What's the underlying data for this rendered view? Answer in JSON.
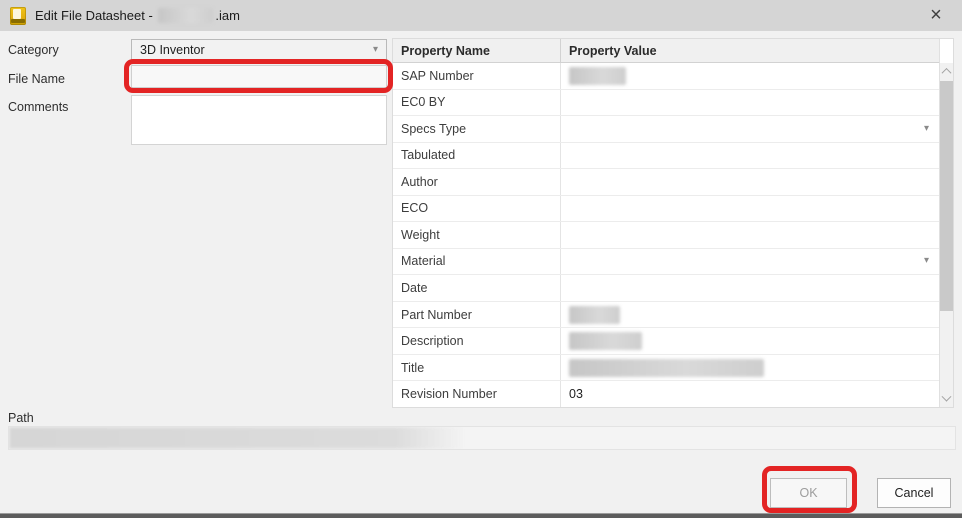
{
  "window": {
    "title_prefix": "Edit File Datasheet - ",
    "title_suffix": ".iam",
    "title_redacted": true,
    "close_glyph": "×"
  },
  "left_panel": {
    "category_label": "Category",
    "category_value": "3D Inventor",
    "file_name_label": "File Name",
    "file_name_value": "",
    "comments_label": "Comments",
    "comments_value": ""
  },
  "table": {
    "headers": [
      "Property Name",
      "Property Value"
    ],
    "rows": [
      {
        "name": "SAP Number",
        "value": "",
        "redacted": true,
        "redact_width": 57,
        "dropdown": false
      },
      {
        "name": "EC0 BY",
        "value": "",
        "redacted": false,
        "dropdown": false
      },
      {
        "name": "Specs Type",
        "value": "",
        "redacted": false,
        "dropdown": true
      },
      {
        "name": "Tabulated",
        "value": "",
        "redacted": false,
        "dropdown": false
      },
      {
        "name": "Author",
        "value": "",
        "redacted": false,
        "dropdown": false
      },
      {
        "name": "ECO",
        "value": "",
        "redacted": false,
        "dropdown": false
      },
      {
        "name": "Weight",
        "value": "",
        "redacted": false,
        "dropdown": false
      },
      {
        "name": "Material",
        "value": "",
        "redacted": false,
        "dropdown": true
      },
      {
        "name": "Date",
        "value": "",
        "redacted": false,
        "dropdown": false
      },
      {
        "name": "Part Number",
        "value": "",
        "redacted": true,
        "redact_width": 51,
        "dropdown": false
      },
      {
        "name": "Description",
        "value": "",
        "redacted": true,
        "redact_width": 73,
        "dropdown": false
      },
      {
        "name": "Title",
        "value": "",
        "redacted": true,
        "redact_width": 195,
        "dropdown": false
      },
      {
        "name": "Revision Number",
        "value": "03",
        "redacted": false,
        "dropdown": false
      }
    ]
  },
  "footer": {
    "path_label": "Path",
    "path_redacted": true,
    "ok_label": "OK",
    "cancel_label": "Cancel"
  },
  "icons": {
    "dropdown_arrow": "▾"
  },
  "colors": {
    "annotation_red": "#e32424",
    "titlebar": "#d5d5d5",
    "body": "#f1f1f1",
    "app_icon_gold": "#e3af10"
  }
}
